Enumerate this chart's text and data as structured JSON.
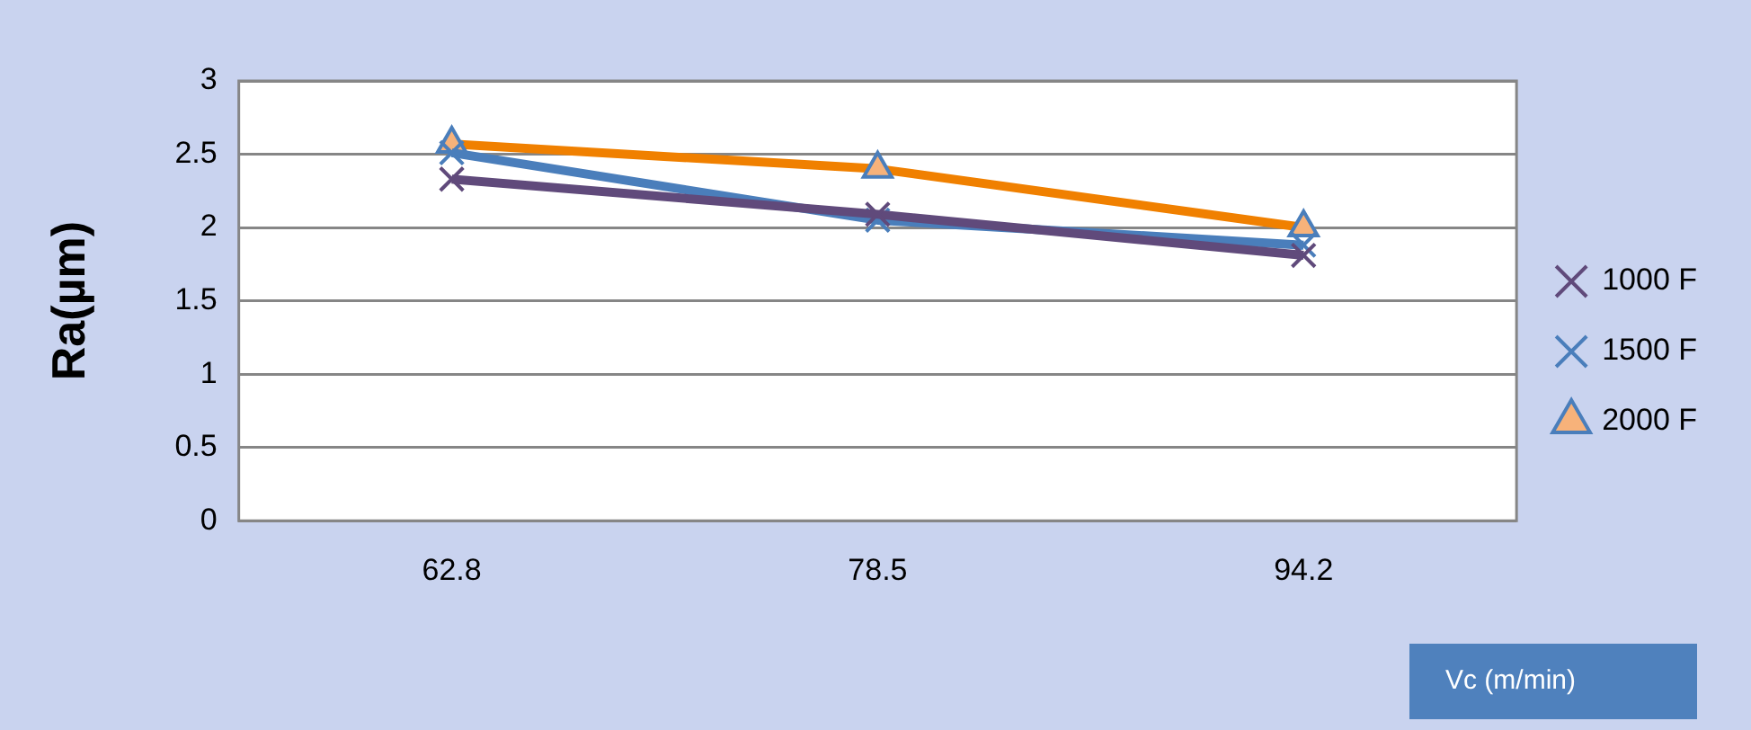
{
  "chart_data": {
    "type": "line",
    "xlabel": "Vc (m/min)",
    "ylabel": "Ra(µm)",
    "categories": [
      "62.8",
      "78.5",
      "94.2"
    ],
    "series": [
      {
        "name": "1000 F",
        "color": "#604a7b",
        "values": [
          2.33,
          2.09,
          1.81
        ],
        "marker": "cross"
      },
      {
        "name": "1500 F",
        "color": "#4a7ebb",
        "values": [
          2.51,
          2.05,
          1.88
        ],
        "marker": "cross"
      },
      {
        "name": "2000 F",
        "color": "#f08000",
        "values": [
          2.57,
          2.4,
          2.0
        ],
        "marker": "triangle"
      }
    ],
    "ylim": [
      0,
      3
    ],
    "yticks": [
      0,
      0.5,
      1,
      1.5,
      2,
      2.5,
      3
    ],
    "grid": "y",
    "legend": "right",
    "line_style": "solid"
  }
}
